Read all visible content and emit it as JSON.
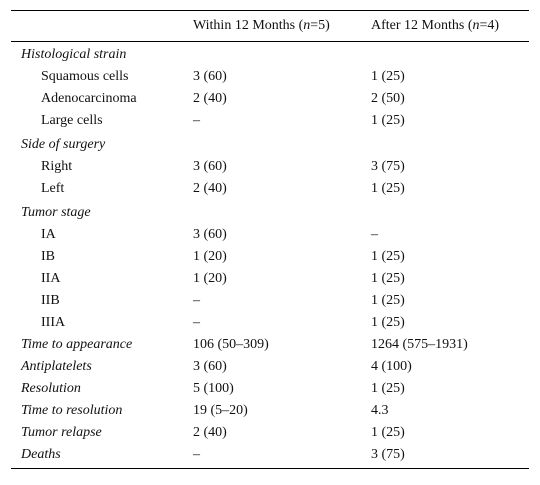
{
  "header": {
    "col1": "",
    "col2_pre": "Within 12 Months (",
    "col2_n": "n",
    "col2_post": "=5)",
    "col3_pre": "After 12 Months (",
    "col3_n": "n",
    "col3_post": "=4)"
  },
  "rows": [
    {
      "label": "Histological strain",
      "type": "section",
      "v1": "",
      "v2": ""
    },
    {
      "label": "Squamous cells",
      "type": "sub",
      "v1": "3 (60)",
      "v2": "1 (25)"
    },
    {
      "label": "Adenocarcinoma",
      "type": "sub",
      "v1": "2 (40)",
      "v2": "2 (50)"
    },
    {
      "label": "Large cells",
      "type": "sub",
      "v1": "–",
      "v2": "1 (25)"
    },
    {
      "label": "Side of surgery",
      "type": "section",
      "v1": "",
      "v2": ""
    },
    {
      "label": "Right",
      "type": "sub",
      "v1": "3 (60)",
      "v2": "3 (75)"
    },
    {
      "label": "Left",
      "type": "sub",
      "v1": "2 (40)",
      "v2": "1 (25)"
    },
    {
      "label": "Tumor stage",
      "type": "section",
      "v1": "",
      "v2": ""
    },
    {
      "label": "IA",
      "type": "sub",
      "v1": "3 (60)",
      "v2": "–"
    },
    {
      "label": "IB",
      "type": "sub",
      "v1": "1 (20)",
      "v2": "1 (25)"
    },
    {
      "label": "IIA",
      "type": "sub",
      "v1": "1 (20)",
      "v2": "1 (25)"
    },
    {
      "label": "IIB",
      "type": "sub",
      "v1": "–",
      "v2": "1 (25)"
    },
    {
      "label": "IIIA",
      "type": "sub",
      "v1": "–",
      "v2": "1 (25)"
    },
    {
      "label": "Time to appearance",
      "type": "item",
      "v1": "106 (50–309)",
      "v2": "1264 (575–1931)"
    },
    {
      "label": "Antiplatelets",
      "type": "item",
      "v1": "3 (60)",
      "v2": "4 (100)"
    },
    {
      "label": "Resolution",
      "type": "item",
      "v1": "5 (100)",
      "v2": "1 (25)"
    },
    {
      "label": "Time to resolution",
      "type": "item",
      "v1": "19 (5–20)",
      "v2": "4.3"
    },
    {
      "label": "Tumor relapse",
      "type": "item",
      "v1": "2 (40)",
      "v2": "1 (25)"
    },
    {
      "label": "Deaths",
      "type": "item",
      "v1": "–",
      "v2": "3 (75)"
    }
  ]
}
